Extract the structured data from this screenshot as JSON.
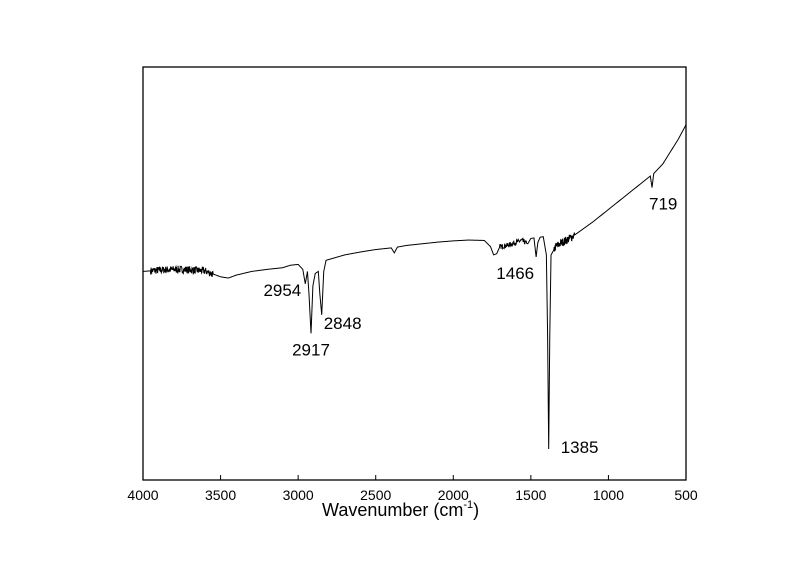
{
  "chart_data": {
    "type": "line",
    "xlabel": "Wavenumber (cm",
    "xlabel_sup": "-1",
    "xlabel_close": ")",
    "ylabel": "",
    "xlim": [
      4000,
      500
    ],
    "ylim": [
      0,
      100
    ],
    "x_ticks": [
      4000,
      3500,
      3000,
      2500,
      2000,
      1500,
      1000,
      500
    ],
    "x_tick_labels": [
      "4000",
      "3500",
      "3000",
      "2500",
      "2000",
      "1500",
      "1000",
      "500"
    ],
    "y_ticks_shown": false,
    "grid": false,
    "series": [
      {
        "points": [
          [
            4000,
            50.5
          ],
          [
            3900,
            50.8
          ],
          [
            3800,
            51.0
          ],
          [
            3700,
            50.9
          ],
          [
            3600,
            50.6
          ],
          [
            3500,
            49.2
          ],
          [
            3450,
            48.9
          ],
          [
            3400,
            49.6
          ],
          [
            3300,
            50.5
          ],
          [
            3200,
            51.0
          ],
          [
            3100,
            51.4
          ],
          [
            3050,
            52.0
          ],
          [
            3000,
            52.2
          ],
          [
            2970,
            51.0
          ],
          [
            2954,
            47.5
          ],
          [
            2940,
            50.5
          ],
          [
            2930,
            45.0
          ],
          [
            2917,
            35.5
          ],
          [
            2905,
            47.0
          ],
          [
            2890,
            50.0
          ],
          [
            2870,
            50.5
          ],
          [
            2860,
            45.0
          ],
          [
            2848,
            40.0
          ],
          [
            2835,
            50.5
          ],
          [
            2820,
            53.2
          ],
          [
            2700,
            54.5
          ],
          [
            2600,
            55.2
          ],
          [
            2500,
            55.8
          ],
          [
            2400,
            56.2
          ],
          [
            2380,
            55.0
          ],
          [
            2360,
            56.4
          ],
          [
            2300,
            56.8
          ],
          [
            2200,
            57.2
          ],
          [
            2100,
            57.6
          ],
          [
            2000,
            57.9
          ],
          [
            1900,
            58.1
          ],
          [
            1800,
            58.0
          ],
          [
            1760,
            56.5
          ],
          [
            1740,
            54.5
          ],
          [
            1720,
            54.8
          ],
          [
            1700,
            56.5
          ],
          [
            1650,
            56.8
          ],
          [
            1600,
            57.5
          ],
          [
            1560,
            58.0
          ],
          [
            1520,
            57.2
          ],
          [
            1500,
            58.5
          ],
          [
            1480,
            58.6
          ],
          [
            1466,
            54.0
          ],
          [
            1455,
            57.5
          ],
          [
            1440,
            58.8
          ],
          [
            1420,
            58.9
          ],
          [
            1400,
            54.5
          ],
          [
            1392,
            35.0
          ],
          [
            1385,
            7.5
          ],
          [
            1378,
            35.0
          ],
          [
            1370,
            54.5
          ],
          [
            1340,
            56.5
          ],
          [
            1300,
            57.5
          ],
          [
            1250,
            58.5
          ],
          [
            1200,
            59.8
          ],
          [
            1100,
            62.5
          ],
          [
            1000,
            65.5
          ],
          [
            900,
            68.5
          ],
          [
            800,
            71.5
          ],
          [
            730,
            73.6
          ],
          [
            719,
            70.8
          ],
          [
            708,
            74.2
          ],
          [
            650,
            76.5
          ],
          [
            600,
            79.5
          ],
          [
            550,
            82.5
          ],
          [
            500,
            86.0
          ]
        ]
      }
    ],
    "noise_regions": [
      {
        "from": 3950,
        "to": 3550,
        "amp": 0.9
      },
      {
        "from": 1700,
        "to": 1530,
        "amp": 0.6
      },
      {
        "from": 1350,
        "to": 1220,
        "amp": 1.0
      }
    ],
    "annotations": [
      {
        "text": "2954",
        "x": 2954,
        "y": 47.5,
        "anchor": "end",
        "dx": -4,
        "dy": 12
      },
      {
        "text": "2917",
        "x": 2917,
        "y": 35.5,
        "anchor": "middle",
        "dx": 0,
        "dy": 22
      },
      {
        "text": "2848",
        "x": 2848,
        "y": 40.0,
        "anchor": "start",
        "dx": 2,
        "dy": 14
      },
      {
        "text": "1466",
        "x": 1466,
        "y": 54.0,
        "anchor": "end",
        "dx": -2,
        "dy": 22
      },
      {
        "text": "1385",
        "x": 1385,
        "y": 7.5,
        "anchor": "start",
        "dx": 12,
        "dy": 4
      },
      {
        "text": "719",
        "x": 719,
        "y": 70.8,
        "anchor": "start",
        "dx": -3,
        "dy": 22
      }
    ]
  }
}
